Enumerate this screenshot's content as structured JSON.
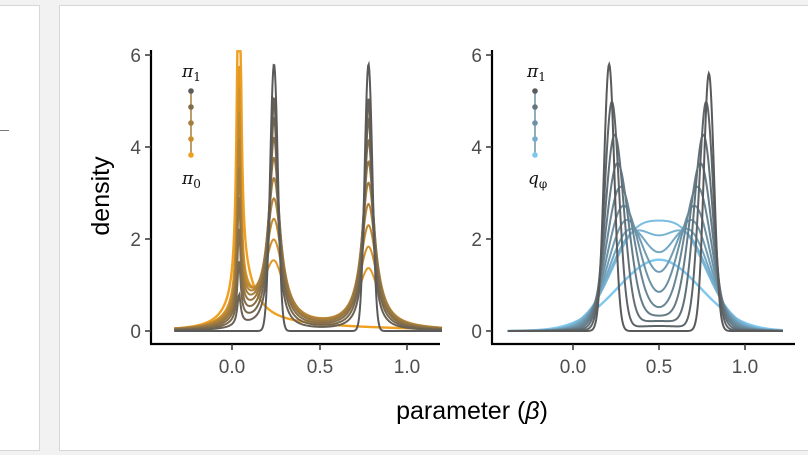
{
  "colors": {
    "card_background": "#ffffff",
    "page_background": "#f2f2f2",
    "left_start": "#5a5a5a",
    "left_end": "#f0a020",
    "right_start": "#5a5a5a",
    "right_end": "#7ec8f0"
  },
  "chart_data": [
    {
      "type": "line",
      "panel": "left",
      "ylabel": "density",
      "xlabel": "",
      "xlim": [
        -0.45,
        1.2
      ],
      "ylim": [
        -0.2,
        6.1
      ],
      "x_ticks": [
        "0.0",
        "0.5",
        "1.0"
      ],
      "x_tick_values": [
        0.0,
        0.5,
        1.0
      ],
      "y_ticks": [
        "0",
        "2",
        "4",
        "6"
      ],
      "y_tick_values": [
        0,
        2,
        4,
        6
      ],
      "legend": {
        "top": "π₁",
        "bottom": "π₀",
        "placement": "top-left",
        "steps": 5
      },
      "description_of_series": "Tempered sequence of densities from pi_0 (orange, peak near 0.04, truncated at 6) to pi_1 (dark grey, two peaks at 0.24 and 0.78, height about 5.8)",
      "series": [
        {
          "lambda": 0.0
        },
        {
          "lambda": 0.1
        },
        {
          "lambda": 0.2
        },
        {
          "lambda": 0.3
        },
        {
          "lambda": 0.4
        },
        {
          "lambda": 0.5
        },
        {
          "lambda": 0.6
        },
        {
          "lambda": 0.7
        },
        {
          "lambda": 0.8
        },
        {
          "lambda": 0.9
        },
        {
          "lambda": 1.0
        }
      ],
      "pi1_modes": [
        0.24,
        0.78
      ],
      "pi1_peak_height": 5.8,
      "pi0_mode": 0.04
    },
    {
      "type": "line",
      "panel": "right",
      "xlabel": "parameter (β)",
      "xlim": [
        -0.4,
        1.25
      ],
      "ylim": [
        -0.2,
        6.1
      ],
      "x_ticks": [
        "0.0",
        "0.5",
        "1.0"
      ],
      "x_tick_values": [
        0.0,
        0.5,
        1.0
      ],
      "y_ticks": [
        "0",
        "2",
        "4",
        "6"
      ],
      "y_tick_values": [
        0,
        2,
        4,
        6
      ],
      "legend": {
        "top": "π₁",
        "bottom": "q_φ",
        "placement": "top-left",
        "steps": 5
      },
      "series": [
        {
          "lambda": 0.0
        },
        {
          "lambda": 0.1
        },
        {
          "lambda": 0.2
        },
        {
          "lambda": 0.3
        },
        {
          "lambda": 0.4
        },
        {
          "lambda": 0.5
        },
        {
          "lambda": 0.6
        },
        {
          "lambda": 0.7
        },
        {
          "lambda": 0.8
        },
        {
          "lambda": 0.9
        },
        {
          "lambda": 1.0
        }
      ],
      "pi1_modes": [
        0.21,
        0.79
      ],
      "pi1_peak_height": 5.8,
      "q_mode": 0.5,
      "q_peak_height": 1.5
    }
  ],
  "labels": {
    "ylabel": "density",
    "xlabel_prefix": "parameter (",
    "xlabel_symbol": "β",
    "xlabel_suffix": ")",
    "left_legend_top": "π",
    "left_legend_top_sub": "1",
    "left_legend_bottom": "π",
    "left_legend_bottom_sub": "0",
    "right_legend_top": "π",
    "right_legend_top_sub": "1",
    "right_legend_bottom": "q",
    "right_legend_bottom_sub": "φ",
    "tick_0": "0",
    "tick_2": "2",
    "tick_4": "4",
    "tick_6": "6",
    "xtick_00": "0.0",
    "xtick_05": "0.5",
    "xtick_10": "1.0"
  }
}
